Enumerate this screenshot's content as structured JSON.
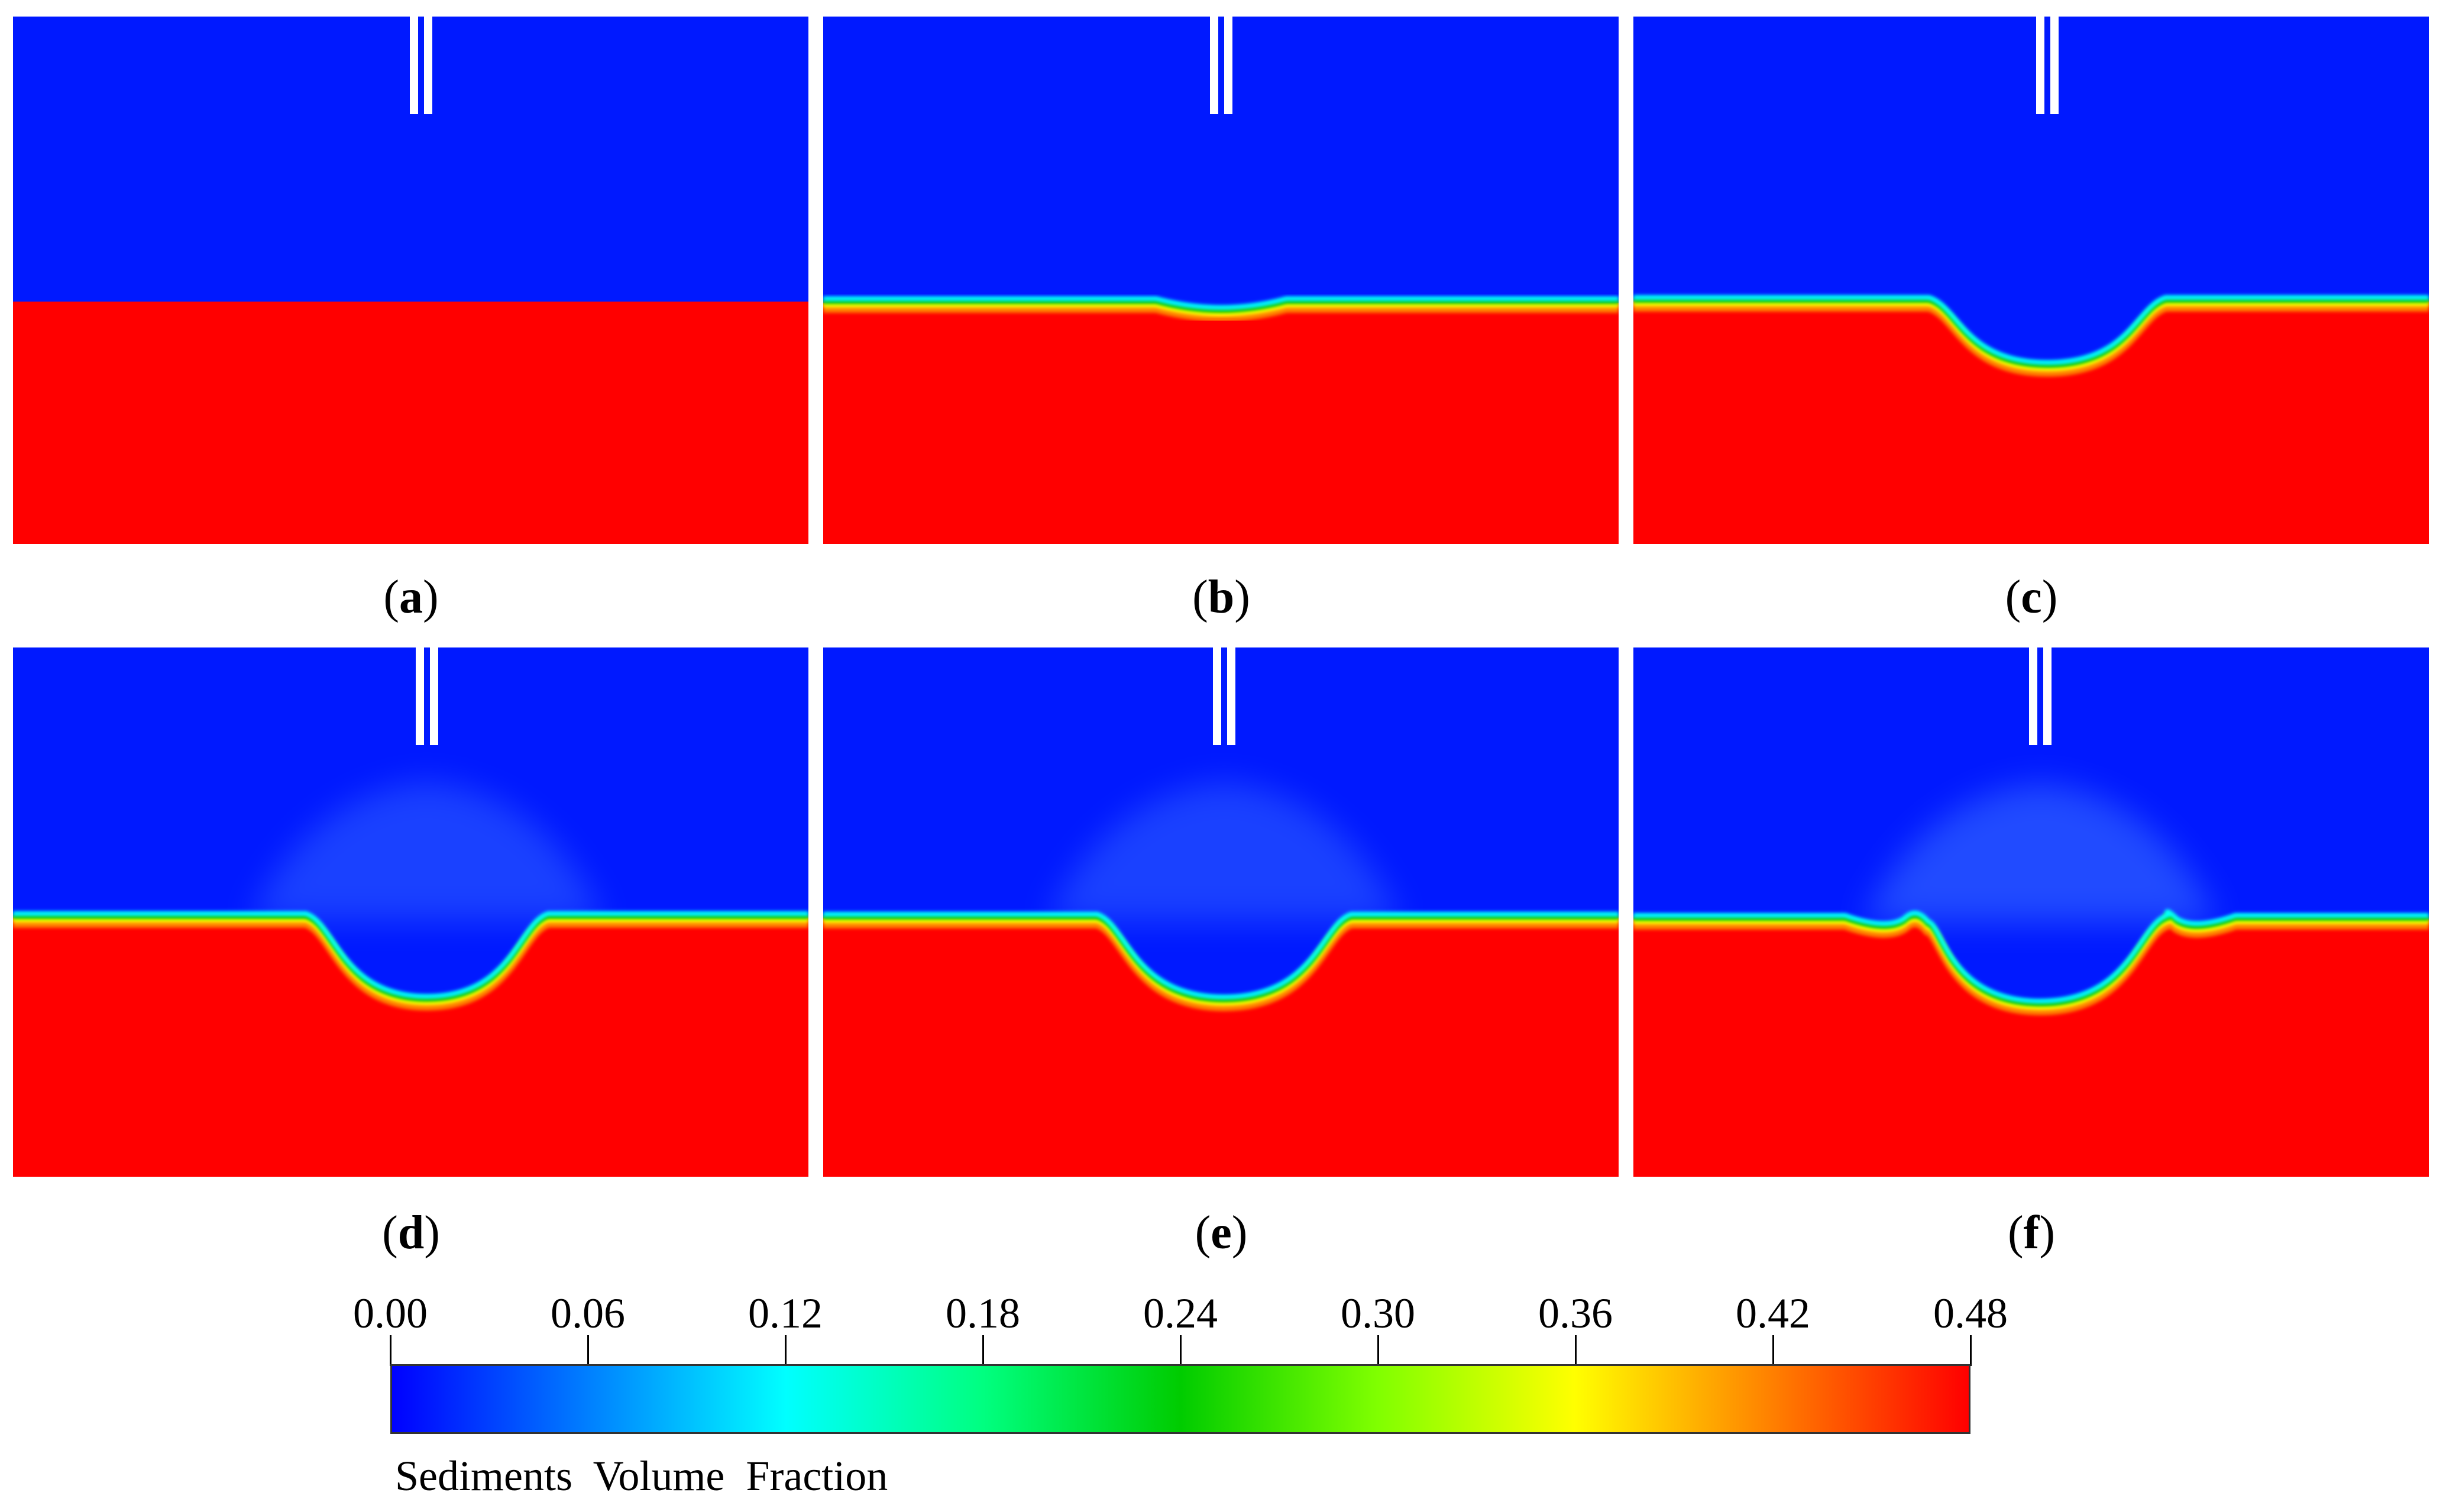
{
  "panels": [
    {
      "id": "a",
      "scour": "none"
    },
    {
      "id": "b",
      "scour": "slight"
    },
    {
      "id": "c",
      "scour": "hole"
    },
    {
      "id": "d",
      "scour": "hole-diffuse"
    },
    {
      "id": "e",
      "scour": "hole-wider"
    },
    {
      "id": "f",
      "scour": "hole-ridges"
    }
  ],
  "colors": {
    "water": "#0019ff",
    "sediment": "#ff0000",
    "pile": "#ffffff"
  },
  "colorbar": {
    "title": "Sediments  Volume  Fraction",
    "ticks": [
      "0.00",
      "0.06",
      "0.12",
      "0.18",
      "0.24",
      "0.30",
      "0.36",
      "0.42",
      "0.48"
    ],
    "min": 0.0,
    "max": 0.48,
    "stops": [
      "#0000ff",
      "#0080ff",
      "#00ffff",
      "#00ff80",
      "#00cc00",
      "#80ff00",
      "#ffff00",
      "#ff8000",
      "#ff0000"
    ]
  }
}
